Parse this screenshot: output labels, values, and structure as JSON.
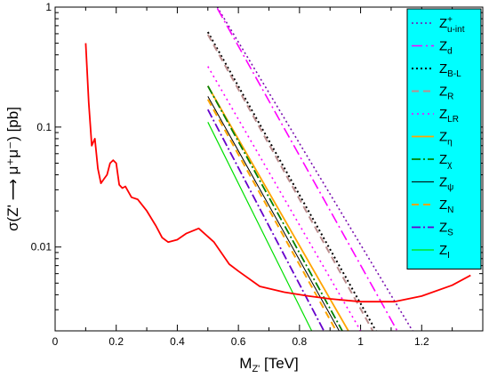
{
  "chart_data": {
    "type": "line",
    "xlabel_main": "M",
    "xlabel_sub": "Z'",
    "xlabel_unit": " [TeV]",
    "ylabel": "σ(Z' ⟶ μ⁺μ⁻) [pb]",
    "xlim": [
      0,
      1.4
    ],
    "ylim": [
      0.002,
      1
    ],
    "yscale": "log",
    "x_ticks": [
      0,
      0.2,
      0.4,
      0.6,
      0.8,
      1,
      1.2
    ],
    "x_tick_labels": [
      "0",
      "0.2",
      "0.4",
      "0.6",
      "0.8",
      "1",
      "1.2"
    ],
    "y_ticks": [
      0.01,
      0.1,
      1
    ],
    "y_tick_labels": [
      "0.01",
      "0.1",
      "1"
    ],
    "legend_position": "top-right",
    "legend_bg": "#00ffff",
    "limit_curve": {
      "color": "#ff0000",
      "x": [
        0.1,
        0.11,
        0.12,
        0.13,
        0.14,
        0.15,
        0.16,
        0.17,
        0.18,
        0.19,
        0.2,
        0.21,
        0.22,
        0.23,
        0.25,
        0.27,
        0.3,
        0.33,
        0.35,
        0.37,
        0.4,
        0.43,
        0.47,
        0.52,
        0.57,
        0.6,
        0.67,
        0.75,
        0.83,
        0.9,
        1.0,
        1.11,
        1.2,
        1.3,
        1.36
      ],
      "y": [
        0.5,
        0.16,
        0.07,
        0.08,
        0.045,
        0.034,
        0.037,
        0.04,
        0.05,
        0.053,
        0.05,
        0.033,
        0.031,
        0.032,
        0.026,
        0.025,
        0.02,
        0.015,
        0.012,
        0.011,
        0.0115,
        0.013,
        0.0143,
        0.011,
        0.0072,
        0.0063,
        0.0047,
        0.0042,
        0.0039,
        0.0037,
        0.0035,
        0.0035,
        0.0039,
        0.0048,
        0.0058
      ]
    },
    "series": [
      {
        "name": "Z",
        "sub": "u-int",
        "sup": "+",
        "color": "#7a10b0",
        "dash": "2,3",
        "width": 1.6,
        "x": [
          0.5,
          1.17
        ],
        "y": [
          1.35,
          0.002
        ]
      },
      {
        "name": "Z",
        "sub": "d",
        "sup": "",
        "color": "#ff00ff",
        "dash": "12,4,2,4",
        "width": 1.6,
        "x": [
          0.5,
          1.12
        ],
        "y": [
          1.35,
          0.002
        ]
      },
      {
        "name": "Z",
        "sub": "B-L",
        "sup": "",
        "color": "#000000",
        "dash": "2,3",
        "width": 2.0,
        "x": [
          0.5,
          1.05
        ],
        "y": [
          0.62,
          0.002
        ]
      },
      {
        "name": "Z",
        "sub": "R",
        "sup": "",
        "color": "#bc8f8f",
        "dash": "8,5",
        "width": 2.0,
        "x": [
          0.5,
          1.04
        ],
        "y": [
          0.59,
          0.002
        ]
      },
      {
        "name": "Z",
        "sub": "LR",
        "sup": "",
        "color": "#ff00ff",
        "dash": "2,4",
        "width": 1.6,
        "x": [
          0.5,
          1.0
        ],
        "y": [
          0.32,
          0.002
        ]
      },
      {
        "name": "Z",
        "sub": "η",
        "sup": "",
        "color": "#ffa500",
        "dash": "",
        "width": 1.8,
        "x": [
          0.5,
          0.96
        ],
        "y": [
          0.22,
          0.002
        ]
      },
      {
        "name": "Z",
        "sub": "χ",
        "sup": "",
        "color": "#008000",
        "dash": "10,3,2,3",
        "width": 1.8,
        "x": [
          0.5,
          0.94
        ],
        "y": [
          0.22,
          0.002
        ]
      },
      {
        "name": "Z",
        "sub": "ψ",
        "sup": "",
        "color": "#000000",
        "dash": "",
        "width": 1.0,
        "x": [
          0.5,
          0.93
        ],
        "y": [
          0.18,
          0.002
        ]
      },
      {
        "name": "Z",
        "sub": "N",
        "sup": "",
        "color": "#ffa500",
        "dash": "8,5",
        "width": 2.0,
        "x": [
          0.5,
          0.92
        ],
        "y": [
          0.17,
          0.002
        ]
      },
      {
        "name": "Z",
        "sub": "S",
        "sup": "",
        "color": "#6600cc",
        "dash": "10,3,2,3",
        "width": 1.8,
        "x": [
          0.5,
          0.88
        ],
        "y": [
          0.14,
          0.002
        ]
      },
      {
        "name": "Z",
        "sub": "I",
        "sup": "",
        "color": "#00e000",
        "dash": "",
        "width": 1.2,
        "x": [
          0.5,
          0.84
        ],
        "y": [
          0.11,
          0.002
        ]
      }
    ]
  }
}
